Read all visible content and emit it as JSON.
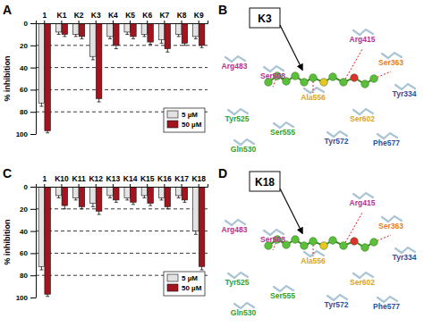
{
  "chart_data": [
    {
      "type": "bar",
      "title": "A",
      "y_label": "% inhibition",
      "categories": [
        "1",
        "K1",
        "K2",
        "K3",
        "K4",
        "K5",
        "K6",
        "K7",
        "K8",
        "K9"
      ],
      "series": [
        {
          "name": "5 µM",
          "color": "#e2e2e2",
          "values": [
            72,
            8,
            10,
            30,
            12,
            8,
            10,
            15,
            10,
            12
          ],
          "errors": [
            3,
            2,
            2,
            3,
            2,
            2,
            2,
            3,
            2,
            2
          ]
        },
        {
          "name": "50 µM",
          "color": "#a3141f",
          "values": [
            97,
            10,
            12,
            68,
            20,
            12,
            17,
            23,
            18,
            20
          ],
          "errors": [
            2,
            2,
            2,
            3,
            3,
            2,
            2,
            3,
            2,
            2
          ]
        }
      ],
      "ylim": [
        0,
        100
      ],
      "yticks": [
        0,
        20,
        40,
        60,
        80,
        100
      ],
      "grid": true,
      "legend": "bottom-right"
    },
    {
      "type": "bar",
      "title": "C",
      "y_label": "% inhibition",
      "categories": [
        "1",
        "K10",
        "K11",
        "K12",
        "K13",
        "K14",
        "K15",
        "K16",
        "K17",
        "K18"
      ],
      "series": [
        {
          "name": "5 µM",
          "color": "#e2e2e2",
          "values": [
            72,
            8,
            10,
            15,
            8,
            10,
            8,
            10,
            8,
            40
          ],
          "errors": [
            3,
            2,
            2,
            3,
            2,
            2,
            2,
            2,
            2,
            3
          ]
        },
        {
          "name": "50 µM",
          "color": "#a3141f",
          "values": [
            97,
            17,
            18,
            22,
            12,
            14,
            15,
            18,
            12,
            72
          ],
          "errors": [
            2,
            3,
            2,
            3,
            2,
            2,
            2,
            2,
            2,
            3
          ]
        }
      ],
      "ylim": [
        0,
        100
      ],
      "yticks": [
        0,
        20,
        40,
        60,
        80,
        100
      ],
      "grid": true,
      "legend": "bottom-right"
    }
  ],
  "structures": [
    {
      "panel": "B",
      "ligand": "K3",
      "residues": [
        {
          "name": "Arg415",
          "color": "#b5338a"
        },
        {
          "name": "Ser363",
          "color": "#e6801a"
        },
        {
          "name": "Arg483",
          "color": "#b5338a"
        },
        {
          "name": "Ser508",
          "color": "#b5338a"
        },
        {
          "name": "Tyr334",
          "color": "#2b4f9e"
        },
        {
          "name": "Tyr525",
          "color": "#2ea02e"
        },
        {
          "name": "Ala556",
          "color": "#d9a520"
        },
        {
          "name": "Ser602",
          "color": "#d9a520"
        },
        {
          "name": "Ser555",
          "color": "#2ea02e"
        },
        {
          "name": "Tyr572",
          "color": "#2b4f9e"
        },
        {
          "name": "Phe577",
          "color": "#2b4f9e"
        },
        {
          "name": "Gln530",
          "color": "#2ea02e"
        }
      ]
    },
    {
      "panel": "D",
      "ligand": "K18",
      "residues": [
        {
          "name": "Arg415",
          "color": "#b5338a"
        },
        {
          "name": "Ser363",
          "color": "#e6801a"
        },
        {
          "name": "Arg483",
          "color": "#b5338a"
        },
        {
          "name": "Ser508",
          "color": "#b5338a"
        },
        {
          "name": "Tyr334",
          "color": "#2b4f9e"
        },
        {
          "name": "Tyr525",
          "color": "#2ea02e"
        },
        {
          "name": "Ala556",
          "color": "#d9a520"
        },
        {
          "name": "Ser602",
          "color": "#d9a520"
        },
        {
          "name": "Ser555",
          "color": "#2ea02e"
        },
        {
          "name": "Tyr572",
          "color": "#2b4f9e"
        },
        {
          "name": "Phe577",
          "color": "#2b4f9e"
        },
        {
          "name": "Gln530",
          "color": "#2ea02e"
        }
      ]
    }
  ]
}
